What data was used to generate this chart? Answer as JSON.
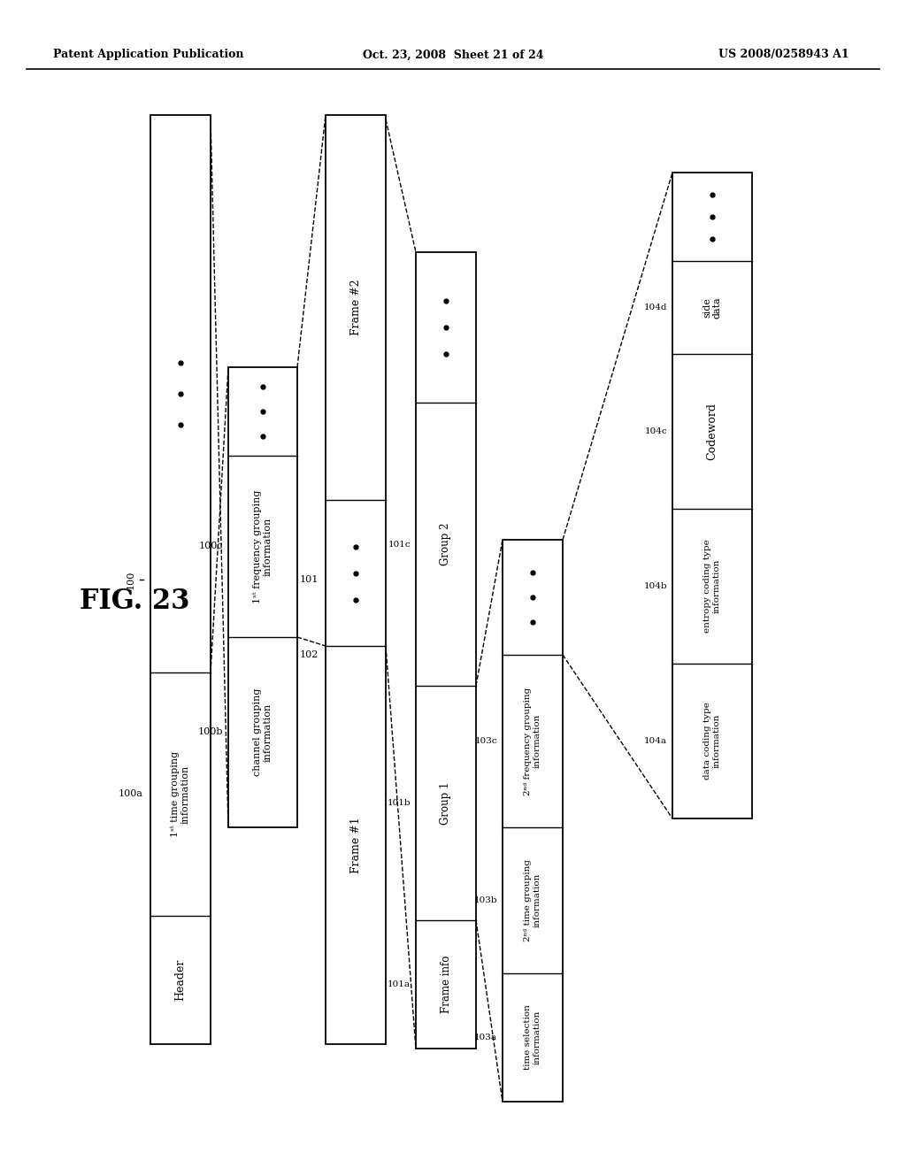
{
  "background": "#ffffff",
  "title_left": "Patent Application Publication",
  "title_center": "Oct. 23, 2008  Sheet 21 of 24",
  "title_right": "US 2008/0258943 A1",
  "fig_label": "FIG. 23"
}
